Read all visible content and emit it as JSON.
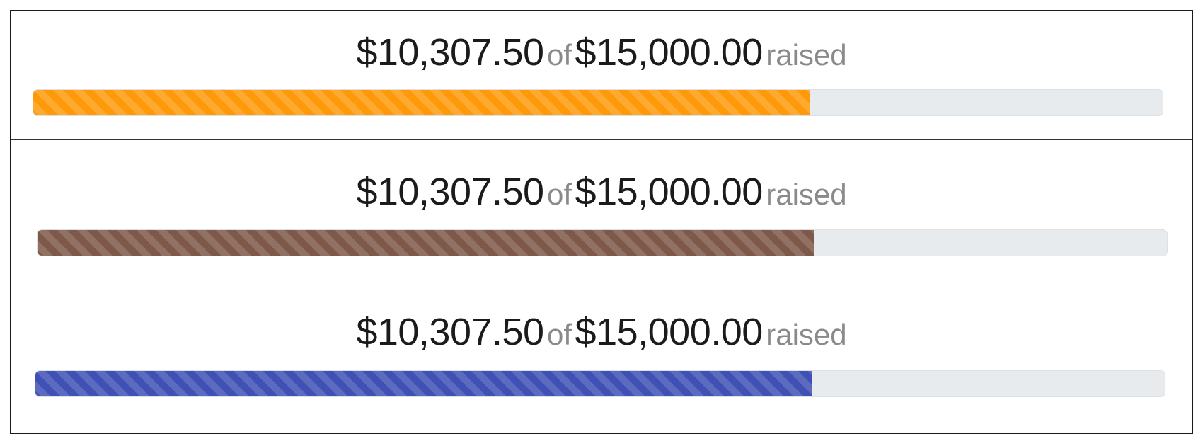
{
  "widgets": [
    {
      "raised": "$10,307.50",
      "of_label": "of",
      "goal": "$15,000.00",
      "raised_label": "raised",
      "progress": 0.68717,
      "bar_color": "#fe9a0a"
    },
    {
      "raised": "$10,307.50",
      "of_label": "of",
      "goal": "$15,000.00",
      "raised_label": "raised",
      "progress": 0.68717,
      "bar_color": "#7e5849"
    },
    {
      "raised": "$10,307.50",
      "of_label": "of",
      "goal": "$15,000.00",
      "raised_label": "raised",
      "progress": 0.68717,
      "bar_color": "#3f51b5"
    }
  ]
}
